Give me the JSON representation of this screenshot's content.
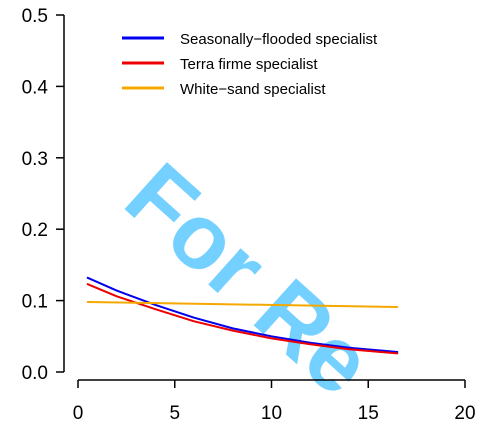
{
  "chart_data": {
    "type": "line",
    "title": "",
    "xlabel": "",
    "ylabel": "",
    "xlim": [
      0,
      20
    ],
    "ylim": [
      0,
      0.5
    ],
    "x_ticks": [
      0,
      5,
      10,
      15,
      20
    ],
    "x_tick_labels": [
      "0",
      "5",
      "10",
      "15",
      "20"
    ],
    "y_ticks": [
      0,
      0.1,
      0.2,
      0.3,
      0.4,
      0.5
    ],
    "y_tick_labels": [
      "0.0",
      "0.1",
      "0.2",
      "0.3",
      "0.4",
      "0.5"
    ],
    "grid": false,
    "legend_position": "top",
    "series": [
      {
        "name": "Seasonally−flooded specialist",
        "color": "#0000ee",
        "x": [
          0.5,
          2,
          4,
          6,
          8,
          10,
          12,
          14,
          16.5
        ],
        "y": [
          0.132,
          0.114,
          0.094,
          0.076,
          0.061,
          0.05,
          0.041,
          0.034,
          0.028
        ]
      },
      {
        "name": "Terra firme specialist",
        "color": "#ee0000",
        "x": [
          0.5,
          2,
          4,
          6,
          8,
          10,
          12,
          14,
          16.5
        ],
        "y": [
          0.123,
          0.106,
          0.088,
          0.071,
          0.058,
          0.047,
          0.039,
          0.032,
          0.026
        ]
      },
      {
        "name": "White−sand specialist",
        "color": "#f5a800",
        "x": [
          0.5,
          16.5
        ],
        "y": [
          0.098,
          0.091
        ]
      }
    ],
    "watermark": {
      "text": "For Re",
      "color": "#00aaff"
    }
  }
}
